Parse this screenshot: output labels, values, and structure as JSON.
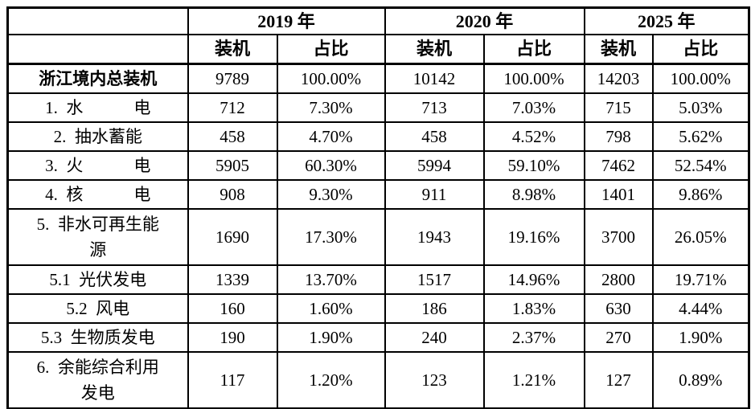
{
  "table": {
    "corner_label": "",
    "year_headers": [
      "2019 年",
      "2020 年",
      "2025 年"
    ],
    "sub_headers": [
      "装机",
      "占比",
      "装机",
      "占比",
      "装机",
      "占比"
    ],
    "rows": [
      {
        "label": "浙江境内总装机",
        "bold": true,
        "values": [
          "9789",
          "100.00%",
          "10142",
          "100.00%",
          "14203",
          "100.00%"
        ]
      },
      {
        "label": "1. 水　　　电",
        "bold": false,
        "values": [
          "712",
          "7.30%",
          "713",
          "7.03%",
          "715",
          "5.03%"
        ]
      },
      {
        "label": "2. 抽水蓄能",
        "bold": false,
        "values": [
          "458",
          "4.70%",
          "458",
          "4.52%",
          "798",
          "5.62%"
        ]
      },
      {
        "label": "3. 火　　　电",
        "bold": false,
        "values": [
          "5905",
          "60.30%",
          "5994",
          "59.10%",
          "7462",
          "52.54%"
        ]
      },
      {
        "label": "4. 核　　　电",
        "bold": false,
        "values": [
          "908",
          "9.30%",
          "911",
          "8.98%",
          "1401",
          "9.86%"
        ]
      },
      {
        "label": "5. 非水可再生能\n源",
        "bold": false,
        "values": [
          "1690",
          "17.30%",
          "1943",
          "19.16%",
          "3700",
          "26.05%"
        ]
      },
      {
        "label": "5.1 光伏发电",
        "bold": false,
        "values": [
          "1339",
          "13.70%",
          "1517",
          "14.96%",
          "2800",
          "19.71%"
        ]
      },
      {
        "label": "5.2 风电",
        "bold": false,
        "values": [
          "160",
          "1.60%",
          "186",
          "1.83%",
          "630",
          "4.44%"
        ]
      },
      {
        "label": "5.3 生物质发电",
        "bold": false,
        "values": [
          "190",
          "1.90%",
          "240",
          "2.37%",
          "270",
          "1.90%"
        ]
      },
      {
        "label": "6. 余能综合利用\n发电",
        "bold": false,
        "values": [
          "117",
          "1.20%",
          "123",
          "1.21%",
          "127",
          "0.89%"
        ]
      }
    ]
  },
  "colors": {
    "border": "#000000",
    "text": "#000000",
    "background": "#ffffff"
  }
}
